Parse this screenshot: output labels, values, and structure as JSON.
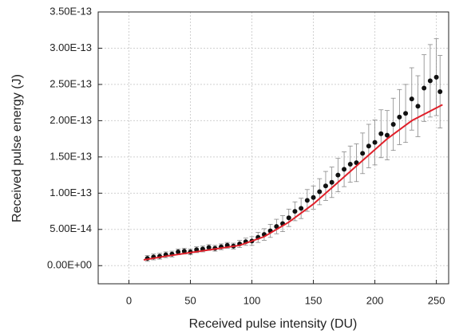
{
  "chart_data": {
    "type": "scatter",
    "x_label": "Received pulse intensity (DU)",
    "y_label": "Received pulse energy (J)",
    "xlim": [
      -25,
      260
    ],
    "xticks": [
      0,
      50,
      100,
      150,
      200,
      250
    ],
    "ylim": [
      -2.5e-14,
      3.5e-13
    ],
    "yticks": [
      {
        "value": 0,
        "label": "0.00E+00"
      },
      {
        "value": 5e-14,
        "label": "5.00E-14"
      },
      {
        "value": 1e-13,
        "label": "1.00E-13"
      },
      {
        "value": 1.5e-13,
        "label": "1.50E-13"
      },
      {
        "value": 2e-13,
        "label": "2.00E-13"
      },
      {
        "value": 2.5e-13,
        "label": "2.50E-13"
      },
      {
        "value": 3e-13,
        "label": "3.00E-13"
      },
      {
        "value": 3.5e-13,
        "label": "3.50E-13"
      }
    ],
    "grid": true,
    "series": [
      {
        "type": "scatter",
        "color": "#111111",
        "error_color": "#888888",
        "x": [
          15,
          20,
          25,
          30,
          35,
          40,
          45,
          50,
          55,
          60,
          65,
          70,
          75,
          80,
          85,
          90,
          95,
          100,
          105,
          110,
          115,
          120,
          125,
          130,
          135,
          140,
          145,
          150,
          155,
          160,
          165,
          170,
          175,
          180,
          185,
          190,
          195,
          200,
          205,
          210,
          215,
          220,
          225,
          230,
          235,
          240,
          245,
          250,
          253
        ],
        "values": [
          1e-14,
          1.2e-14,
          1.3e-14,
          1.5e-14,
          1.6e-14,
          1.9e-14,
          2e-14,
          1.9e-14,
          2.2e-14,
          2.3e-14,
          2.5e-14,
          2.4e-14,
          2.6e-14,
          2.8e-14,
          2.7e-14,
          3e-14,
          3.3e-14,
          3.4e-14,
          3.9e-14,
          4.3e-14,
          4.8e-14,
          5.4e-14,
          5.8e-14,
          6.6e-14,
          7.5e-14,
          7.9e-14,
          9e-14,
          9.4e-14,
          1.02e-13,
          1.1e-13,
          1.15e-13,
          1.25e-13,
          1.33e-13,
          1.4e-13,
          1.42e-13,
          1.55e-13,
          1.65e-13,
          1.7e-13,
          1.82e-13,
          1.8e-13,
          1.95e-13,
          2.05e-13,
          2.1e-13,
          2.3e-13,
          2.2e-13,
          2.45e-13,
          2.55e-13,
          2.6e-13,
          2.4e-13
        ],
        "errors": [
          4e-15,
          4e-15,
          4e-15,
          4e-15,
          4e-15,
          4e-15,
          4e-15,
          4e-15,
          4e-15,
          4e-15,
          4e-15,
          4e-15,
          4e-15,
          4e-15,
          4e-15,
          5e-15,
          5e-15,
          6e-15,
          7e-15,
          8e-15,
          9e-15,
          1e-14,
          1.1e-14,
          1.2e-14,
          1.3e-14,
          1.4e-14,
          1.5e-14,
          1.6e-14,
          1.8e-14,
          2e-14,
          2.1e-14,
          2.3e-14,
          2.4e-14,
          2.5e-14,
          2.6e-14,
          2.8e-14,
          3e-14,
          3.1e-14,
          3.3e-14,
          3.4e-14,
          3.6e-14,
          3.8e-14,
          4e-14,
          4.3e-14,
          4.2e-14,
          4.6e-14,
          5e-14,
          5.3e-14,
          5e-14
        ]
      },
      {
        "type": "line",
        "color": "#e0202a",
        "x": [
          12,
          30,
          50,
          70,
          90,
          110,
          130,
          150,
          170,
          190,
          210,
          230,
          255
        ],
        "values": [
          8e-15,
          1.3e-14,
          1.8e-14,
          2.3e-14,
          2.8e-14,
          4e-14,
          6e-14,
          8.5e-14,
          1.15e-13,
          1.45e-13,
          1.75e-13,
          2e-13,
          2.22e-13
        ]
      }
    ]
  }
}
